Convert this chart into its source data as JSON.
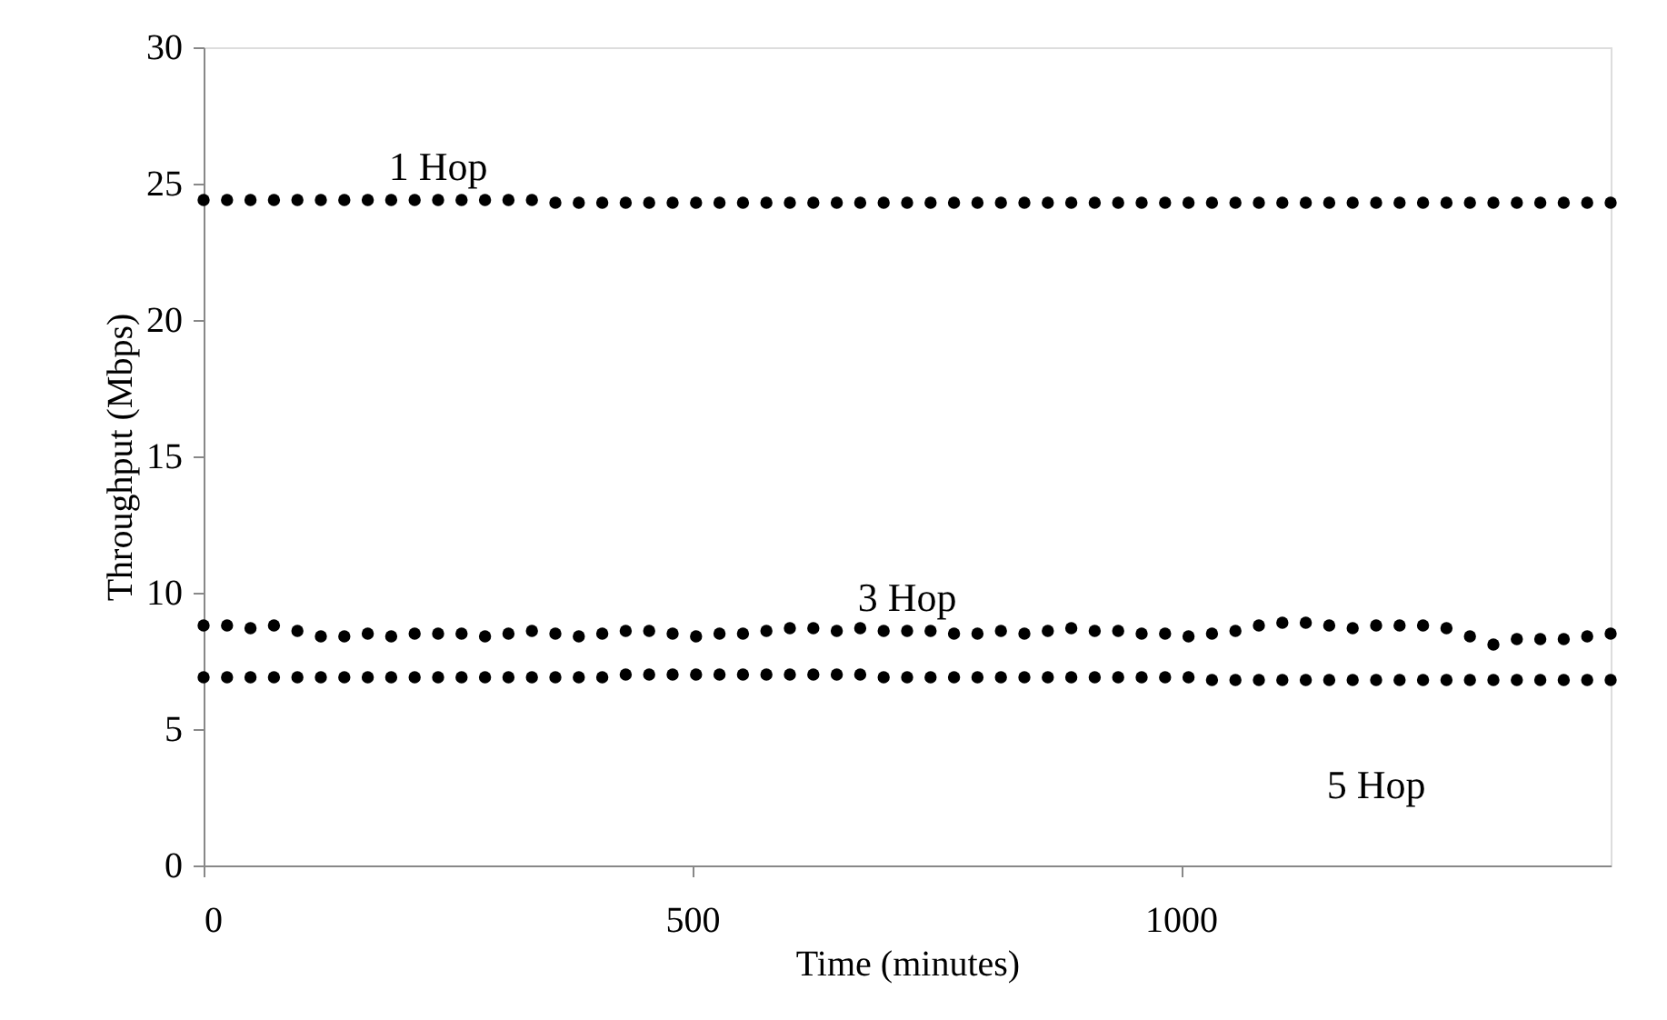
{
  "chart_data": {
    "type": "scatter",
    "xlabel": "Time (minutes)",
    "ylabel": "Throughput (Mbps)",
    "x": [
      0,
      24,
      48,
      72,
      96,
      120,
      144,
      168,
      192,
      216,
      240,
      264,
      288,
      312,
      336,
      360,
      384,
      408,
      432,
      456,
      480,
      504,
      528,
      552,
      576,
      600,
      624,
      648,
      672,
      696,
      720,
      744,
      768,
      792,
      816,
      840,
      864,
      888,
      912,
      936,
      960,
      984,
      1008,
      1032,
      1056,
      1080,
      1104,
      1128,
      1152,
      1176,
      1200,
      1224,
      1248,
      1272,
      1296,
      1320,
      1344,
      1368,
      1392,
      1416,
      1440
    ],
    "series": [
      {
        "name": "1 Hop",
        "color": "#000000",
        "values": [
          24.4,
          24.4,
          24.4,
          24.4,
          24.4,
          24.4,
          24.4,
          24.4,
          24.4,
          24.4,
          24.4,
          24.4,
          24.4,
          24.4,
          24.4,
          24.3,
          24.3,
          24.3,
          24.3,
          24.3,
          24.3,
          24.3,
          24.3,
          24.3,
          24.3,
          24.3,
          24.3,
          24.3,
          24.3,
          24.3,
          24.3,
          24.3,
          24.3,
          24.3,
          24.3,
          24.3,
          24.3,
          24.3,
          24.3,
          24.3,
          24.3,
          24.3,
          24.3,
          24.3,
          24.3,
          24.3,
          24.3,
          24.3,
          24.3,
          24.3,
          24.3,
          24.3,
          24.3,
          24.3,
          24.3,
          24.3,
          24.3,
          24.3,
          24.3,
          24.3,
          24.3
        ]
      },
      {
        "name": "3 Hop",
        "color": "#000000",
        "values": [
          8.8,
          8.8,
          8.7,
          8.8,
          8.6,
          8.4,
          8.4,
          8.5,
          8.4,
          8.5,
          8.5,
          8.5,
          8.4,
          8.5,
          8.6,
          8.5,
          8.4,
          8.5,
          8.6,
          8.6,
          8.5,
          8.4,
          8.5,
          8.5,
          8.6,
          8.7,
          8.7,
          8.6,
          8.7,
          8.6,
          8.6,
          8.6,
          8.5,
          8.5,
          8.6,
          8.5,
          8.6,
          8.7,
          8.6,
          8.6,
          8.5,
          8.5,
          8.4,
          8.5,
          8.6,
          8.8,
          8.9,
          8.9,
          8.8,
          8.7,
          8.8,
          8.8,
          8.8,
          8.7,
          8.4,
          8.1,
          8.3,
          8.3,
          8.3,
          8.4,
          8.5
        ]
      },
      {
        "name": "5 Hop",
        "color": "#000000",
        "values": [
          6.9,
          6.9,
          6.9,
          6.9,
          6.9,
          6.9,
          6.9,
          6.9,
          6.9,
          6.9,
          6.9,
          6.9,
          6.9,
          6.9,
          6.9,
          6.9,
          6.9,
          6.9,
          7.0,
          7.0,
          7.0,
          7.0,
          7.0,
          7.0,
          7.0,
          7.0,
          7.0,
          7.0,
          7.0,
          6.9,
          6.9,
          6.9,
          6.9,
          6.9,
          6.9,
          6.9,
          6.9,
          6.9,
          6.9,
          6.9,
          6.9,
          6.9,
          6.9,
          6.8,
          6.8,
          6.8,
          6.8,
          6.8,
          6.8,
          6.8,
          6.8,
          6.8,
          6.8,
          6.8,
          6.8,
          6.8,
          6.8,
          6.8,
          6.8,
          6.8,
          6.8
        ]
      }
    ],
    "xlim": [
      0,
      1440
    ],
    "xticks": [
      0,
      500,
      {
        "value": 1000,
        "label": "1000"
      }
    ],
    "ylim": [
      0,
      30
    ],
    "yticks": [
      0,
      5,
      10,
      15,
      20,
      25,
      30
    ],
    "grid": false,
    "legend": false,
    "marker": "circle"
  }
}
